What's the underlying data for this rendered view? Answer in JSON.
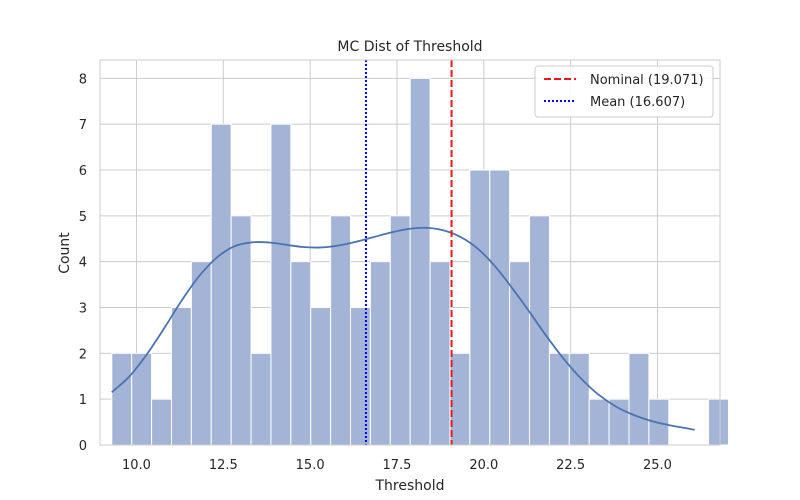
{
  "chart_data": {
    "type": "bar",
    "title": "MC Dist of Threshold",
    "xlabel": "Threshold",
    "ylabel": "Count",
    "xlim": [
      8.95,
      26.8
    ],
    "ylim": [
      0,
      8.4
    ],
    "xticks": [
      10.0,
      12.5,
      15.0,
      17.5,
      20.0,
      22.5,
      25.0
    ],
    "xtick_labels": [
      "10.0",
      "12.5",
      "15.0",
      "17.5",
      "20.0",
      "22.5",
      "25.0"
    ],
    "yticks": [
      0,
      1,
      2,
      3,
      4,
      5,
      6,
      7,
      8
    ],
    "ytick_labels": [
      "0",
      "1",
      "2",
      "3",
      "4",
      "5",
      "6",
      "7",
      "8"
    ],
    "grid": true,
    "legend_position": "top-right",
    "histogram": {
      "bin_start": 9.29,
      "bin_width": 0.5727,
      "counts": [
        2,
        2,
        1,
        3,
        4,
        7,
        5,
        2,
        7,
        4,
        3,
        5,
        3,
        4,
        5,
        8,
        4,
        2,
        6,
        6,
        4,
        5,
        2,
        2,
        1,
        1,
        2,
        1,
        0,
        0,
        1
      ],
      "color": "#a3b4d6"
    },
    "kde": {
      "color": "#4c72b0",
      "x": [
        9.29,
        9.8,
        10.3,
        10.8,
        11.3,
        11.8,
        12.3,
        12.8,
        13.3,
        13.8,
        14.3,
        14.8,
        15.3,
        15.8,
        16.3,
        16.8,
        17.3,
        17.8,
        18.3,
        18.8,
        19.3,
        19.8,
        20.3,
        20.8,
        21.3,
        21.8,
        22.3,
        22.8,
        23.3,
        23.8,
        24.3,
        24.8,
        25.3,
        25.8,
        26.07
      ],
      "y": [
        1.15,
        1.5,
        1.98,
        2.55,
        3.15,
        3.68,
        4.08,
        4.33,
        4.42,
        4.42,
        4.37,
        4.32,
        4.31,
        4.35,
        4.43,
        4.53,
        4.63,
        4.71,
        4.74,
        4.69,
        4.55,
        4.3,
        3.92,
        3.44,
        2.92,
        2.38,
        1.88,
        1.45,
        1.1,
        0.84,
        0.66,
        0.53,
        0.44,
        0.37,
        0.33
      ]
    },
    "reference_lines": [
      {
        "name": "Nominal (19.071)",
        "value": 19.071,
        "color": "#e41a1c",
        "style": "dashed"
      },
      {
        "name": "Mean (16.607)",
        "value": 16.607,
        "color": "#0000ee",
        "style": "dotted"
      }
    ]
  }
}
